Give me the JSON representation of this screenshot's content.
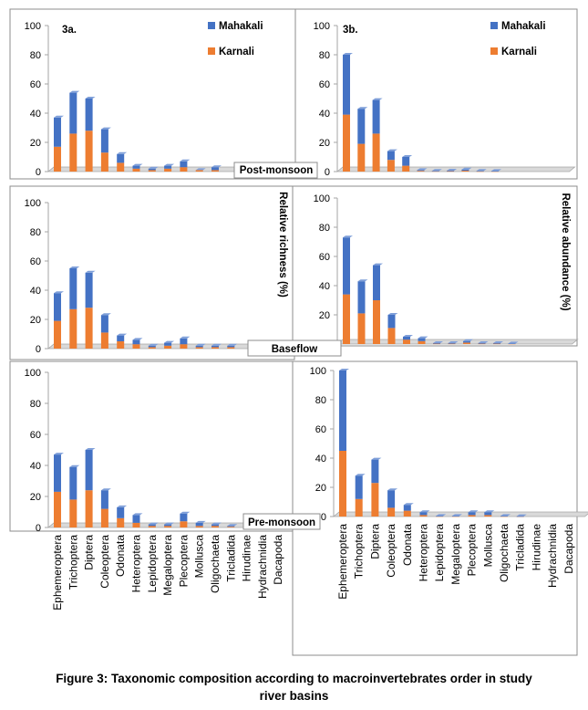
{
  "caption": {
    "line1": "Figure 3: Taxonomic composition according to macroinvertebrates order in study",
    "line2": "river basins"
  },
  "colors": {
    "mahakali": "#4472C4",
    "karnali": "#ED7D31",
    "frame": "#8c8c8c",
    "floor": "#d9d9d9"
  },
  "axis_titles": {
    "left": "Relative richness (%)",
    "right": "Relative abundance (%)"
  },
  "categories": [
    "Ephemeroptera",
    "Trichoptera",
    "Diptera",
    "Coleoptera",
    "Odonata",
    "Heteroptera",
    "Lepidoptera",
    "Megaloptera",
    "Plecoptera",
    "Mollusca",
    "Oligochaeta",
    "Tricladida",
    "Hirudinae",
    "Hydrachnidia",
    "Dacapoda"
  ],
  "chart_data": [
    {
      "type": "bar",
      "stacked": true,
      "panel_label": "3a.",
      "season": "Post-monsoon",
      "ylabel": "Relative richness (%)",
      "ylim": [
        0,
        100
      ],
      "ticks": [
        0,
        20,
        40,
        60,
        80,
        100
      ],
      "legend": "top-right",
      "series": [
        {
          "name": "Karnali",
          "values": [
            17,
            26,
            28,
            13,
            6,
            2,
            1,
            2,
            3,
            1,
            1,
            0,
            0,
            0,
            0
          ]
        },
        {
          "name": "Mahakali",
          "values": [
            20,
            28,
            22,
            16,
            6,
            2,
            1,
            2,
            4,
            0,
            2,
            0,
            0,
            0,
            0
          ]
        }
      ]
    },
    {
      "type": "bar",
      "stacked": true,
      "panel_label": "3b.",
      "season": "Post-monsoon",
      "ylabel": "Relative abundance (%)",
      "ylim": [
        0,
        100
      ],
      "ticks": [
        0,
        20,
        40,
        60,
        80,
        100
      ],
      "legend": "top-right",
      "series": [
        {
          "name": "Karnali",
          "values": [
            39,
            19,
            26,
            8,
            4,
            0.5,
            0.3,
            0.3,
            0.6,
            0.2,
            0.2,
            0,
            0,
            0,
            0
          ]
        },
        {
          "name": "Mahakali",
          "values": [
            41,
            24,
            23,
            6,
            6,
            0.5,
            0.2,
            0.3,
            0.8,
            0.3,
            0.2,
            0,
            0,
            0,
            0
          ]
        }
      ]
    },
    {
      "type": "bar",
      "stacked": true,
      "panel_label": "",
      "season": "Baseflow",
      "ylabel": "Relative richness (%)",
      "ylim": [
        0,
        100
      ],
      "ticks": [
        0,
        20,
        40,
        60,
        80,
        100
      ],
      "legend": "",
      "series": [
        {
          "name": "Karnali",
          "values": [
            19,
            27,
            28,
            11,
            5,
            3,
            1,
            2,
            3,
            1,
            1,
            1,
            0,
            0,
            0
          ]
        },
        {
          "name": "Mahakali",
          "values": [
            19,
            28,
            24,
            12,
            4,
            3,
            1,
            2,
            4,
            1,
            1,
            1,
            0,
            0,
            0
          ]
        }
      ]
    },
    {
      "type": "bar",
      "stacked": true,
      "panel_label": "",
      "season": "Baseflow",
      "ylabel": "Relative abundance (%)",
      "ylim": [
        0,
        100
      ],
      "ticks": [
        0,
        20,
        40,
        60,
        80,
        100
      ],
      "legend": "",
      "series": [
        {
          "name": "Karnali",
          "values": [
            34,
            21,
            30,
            11,
            3,
            2,
            0.3,
            0.3,
            1,
            0.3,
            0.3,
            0.2,
            0,
            0,
            0
          ]
        },
        {
          "name": "Mahakali",
          "values": [
            39,
            22,
            24,
            9,
            2,
            2,
            0.3,
            0.3,
            1,
            0.3,
            0.3,
            0.2,
            0,
            0,
            0
          ]
        }
      ]
    },
    {
      "type": "bar",
      "stacked": true,
      "panel_label": "",
      "season": "Pre-monsoon",
      "ylabel": "Relative richness (%)",
      "ylim": [
        0,
        100
      ],
      "ticks": [
        0,
        20,
        40,
        60,
        80,
        100
      ],
      "legend": "",
      "series": [
        {
          "name": "Karnali",
          "values": [
            23,
            18,
            24,
            12,
            6,
            3,
            1,
            1,
            4,
            1,
            1,
            0.5,
            0,
            0,
            0
          ]
        },
        {
          "name": "Mahakali",
          "values": [
            24,
            21,
            26,
            12,
            7,
            5,
            1,
            1,
            5,
            2,
            1,
            0.5,
            0,
            0,
            0
          ]
        }
      ]
    },
    {
      "type": "bar",
      "stacked": true,
      "panel_label": "",
      "season": "Pre-monsoon",
      "ylabel": "Relative abundance (%)",
      "ylim": [
        0,
        100
      ],
      "ticks": [
        0,
        20,
        40,
        60,
        80,
        100
      ],
      "legend": "",
      "series": [
        {
          "name": "Karnali",
          "values": [
            45,
            12,
            23,
            6,
            4,
            1,
            0.2,
            0.2,
            1,
            1,
            0.2,
            0.1,
            0,
            0,
            0
          ]
        },
        {
          "name": "Mahakali",
          "values": [
            55,
            16,
            16,
            12,
            4,
            2,
            0.2,
            0.2,
            2,
            2,
            0.2,
            0.1,
            0,
            0,
            0
          ]
        }
      ]
    }
  ]
}
